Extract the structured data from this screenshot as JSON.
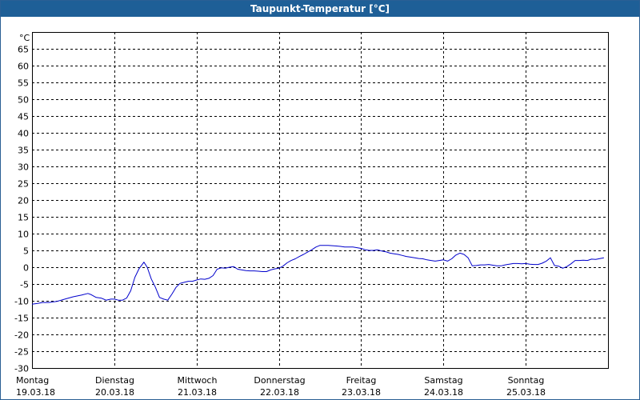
{
  "window": {
    "title": "Taupunkt-Temperatur [°C]"
  },
  "chart_data": {
    "type": "line",
    "title": "Taupunkt-Temperatur [°C]",
    "ylabel": "°C",
    "ylim": [
      -30,
      70
    ],
    "xlim": [
      0,
      7
    ],
    "grid": true,
    "y_ticks": [
      -30,
      -25,
      -20,
      -15,
      -10,
      -5,
      0,
      5,
      10,
      15,
      20,
      25,
      30,
      35,
      40,
      45,
      50,
      55,
      60,
      65
    ],
    "x_ticks": [
      {
        "day": "Montag",
        "date": "19.03.18"
      },
      {
        "day": "Dienstag",
        "date": "20.03.18"
      },
      {
        "day": "Mittwoch",
        "date": "21.03.18"
      },
      {
        "day": "Donnerstag",
        "date": "22.03.18"
      },
      {
        "day": "Freitag",
        "date": "23.03.18"
      },
      {
        "day": "Samstag",
        "date": "24.03.18"
      },
      {
        "day": "Sonntag",
        "date": "25.03.18"
      }
    ],
    "line_color": "#0000cc",
    "series": [
      {
        "x": [
          0,
          0.06,
          0.13,
          0.2,
          0.3,
          0.4,
          0.5,
          0.6,
          0.68,
          0.72,
          0.78,
          0.84,
          0.9,
          0.96,
          1.0,
          1.05,
          1.1,
          1.15,
          1.2,
          1.25,
          1.3,
          1.36,
          1.4,
          1.45,
          1.5,
          1.55,
          1.6,
          1.65,
          1.7,
          1.75,
          1.8,
          1.85,
          1.9,
          1.95,
          2.0,
          2.05,
          2.1,
          2.15,
          2.2,
          2.25,
          2.3,
          2.35,
          2.4,
          2.45,
          2.5,
          2.55,
          2.6,
          2.65,
          2.7,
          2.75,
          2.8,
          2.85,
          2.9,
          2.95,
          3.0,
          3.05,
          3.1,
          3.15,
          3.2,
          3.25,
          3.3,
          3.35,
          3.4,
          3.45,
          3.5,
          3.55,
          3.6,
          3.65,
          3.7,
          3.75,
          3.8,
          3.85,
          3.9,
          3.95,
          4.0,
          4.05,
          4.1,
          4.15,
          4.2,
          4.25,
          4.3,
          4.35,
          4.4,
          4.45,
          4.5,
          4.55,
          4.6,
          4.65,
          4.7,
          4.75,
          4.8,
          4.85,
          4.9,
          4.95,
          5.0,
          5.05,
          5.1,
          5.15,
          5.2,
          5.25,
          5.3,
          5.35,
          5.4,
          5.45,
          5.5,
          5.55,
          5.6,
          5.65,
          5.7,
          5.75,
          5.8,
          5.85,
          5.9,
          5.95,
          6.0,
          6.05,
          6.1,
          6.15,
          6.2,
          6.25,
          6.3,
          6.35,
          6.4,
          6.45,
          6.5,
          6.55,
          6.6,
          6.65,
          6.7,
          6.75,
          6.8,
          6.85,
          6.95
        ],
        "y": [
          -11,
          -10.8,
          -10.5,
          -10.5,
          -10.2,
          -9.5,
          -8.8,
          -8.3,
          -7.8,
          -8.2,
          -9,
          -9.2,
          -9.8,
          -9.5,
          -9.5,
          -9.8,
          -9.8,
          -9.2,
          -7,
          -3,
          -0.5,
          1.5,
          0,
          -3.5,
          -6,
          -9,
          -9.5,
          -9.8,
          -8,
          -6,
          -4.8,
          -4.5,
          -4.2,
          -4.2,
          -3.8,
          -3.5,
          -3.6,
          -3.3,
          -2.5,
          -0.6,
          -0.2,
          -0.3,
          0,
          0.2,
          -0.6,
          -0.8,
          -1,
          -1.1,
          -1.1,
          -1.2,
          -1.3,
          -1.3,
          -0.8,
          -0.5,
          -0.3,
          0.3,
          1.3,
          2,
          2.5,
          3.2,
          3.8,
          4.5,
          5.2,
          6,
          6.5,
          6.5,
          6.5,
          6.4,
          6.3,
          6.2,
          6,
          6,
          6,
          5.8,
          5.6,
          5.2,
          5,
          5,
          5.2,
          4.8,
          4.6,
          4.2,
          4,
          3.8,
          3.5,
          3.2,
          3,
          2.8,
          2.6,
          2.5,
          2.2,
          2,
          1.8,
          2,
          2.2,
          1.8,
          2.5,
          3.6,
          4.2,
          3.8,
          2.8,
          0.4,
          0.5,
          0.7,
          0.7,
          0.8,
          0.6,
          0.4,
          0.4,
          0.7,
          0.9,
          1.1,
          1.1,
          1,
          1.1,
          0.9,
          0.8,
          0.8,
          1.2,
          1.8,
          2.8,
          0.5,
          0.3,
          -0.3,
          0.2,
          1,
          2,
          2,
          2.1,
          2,
          2.4,
          2.3,
          2.8
        ]
      }
    ]
  }
}
